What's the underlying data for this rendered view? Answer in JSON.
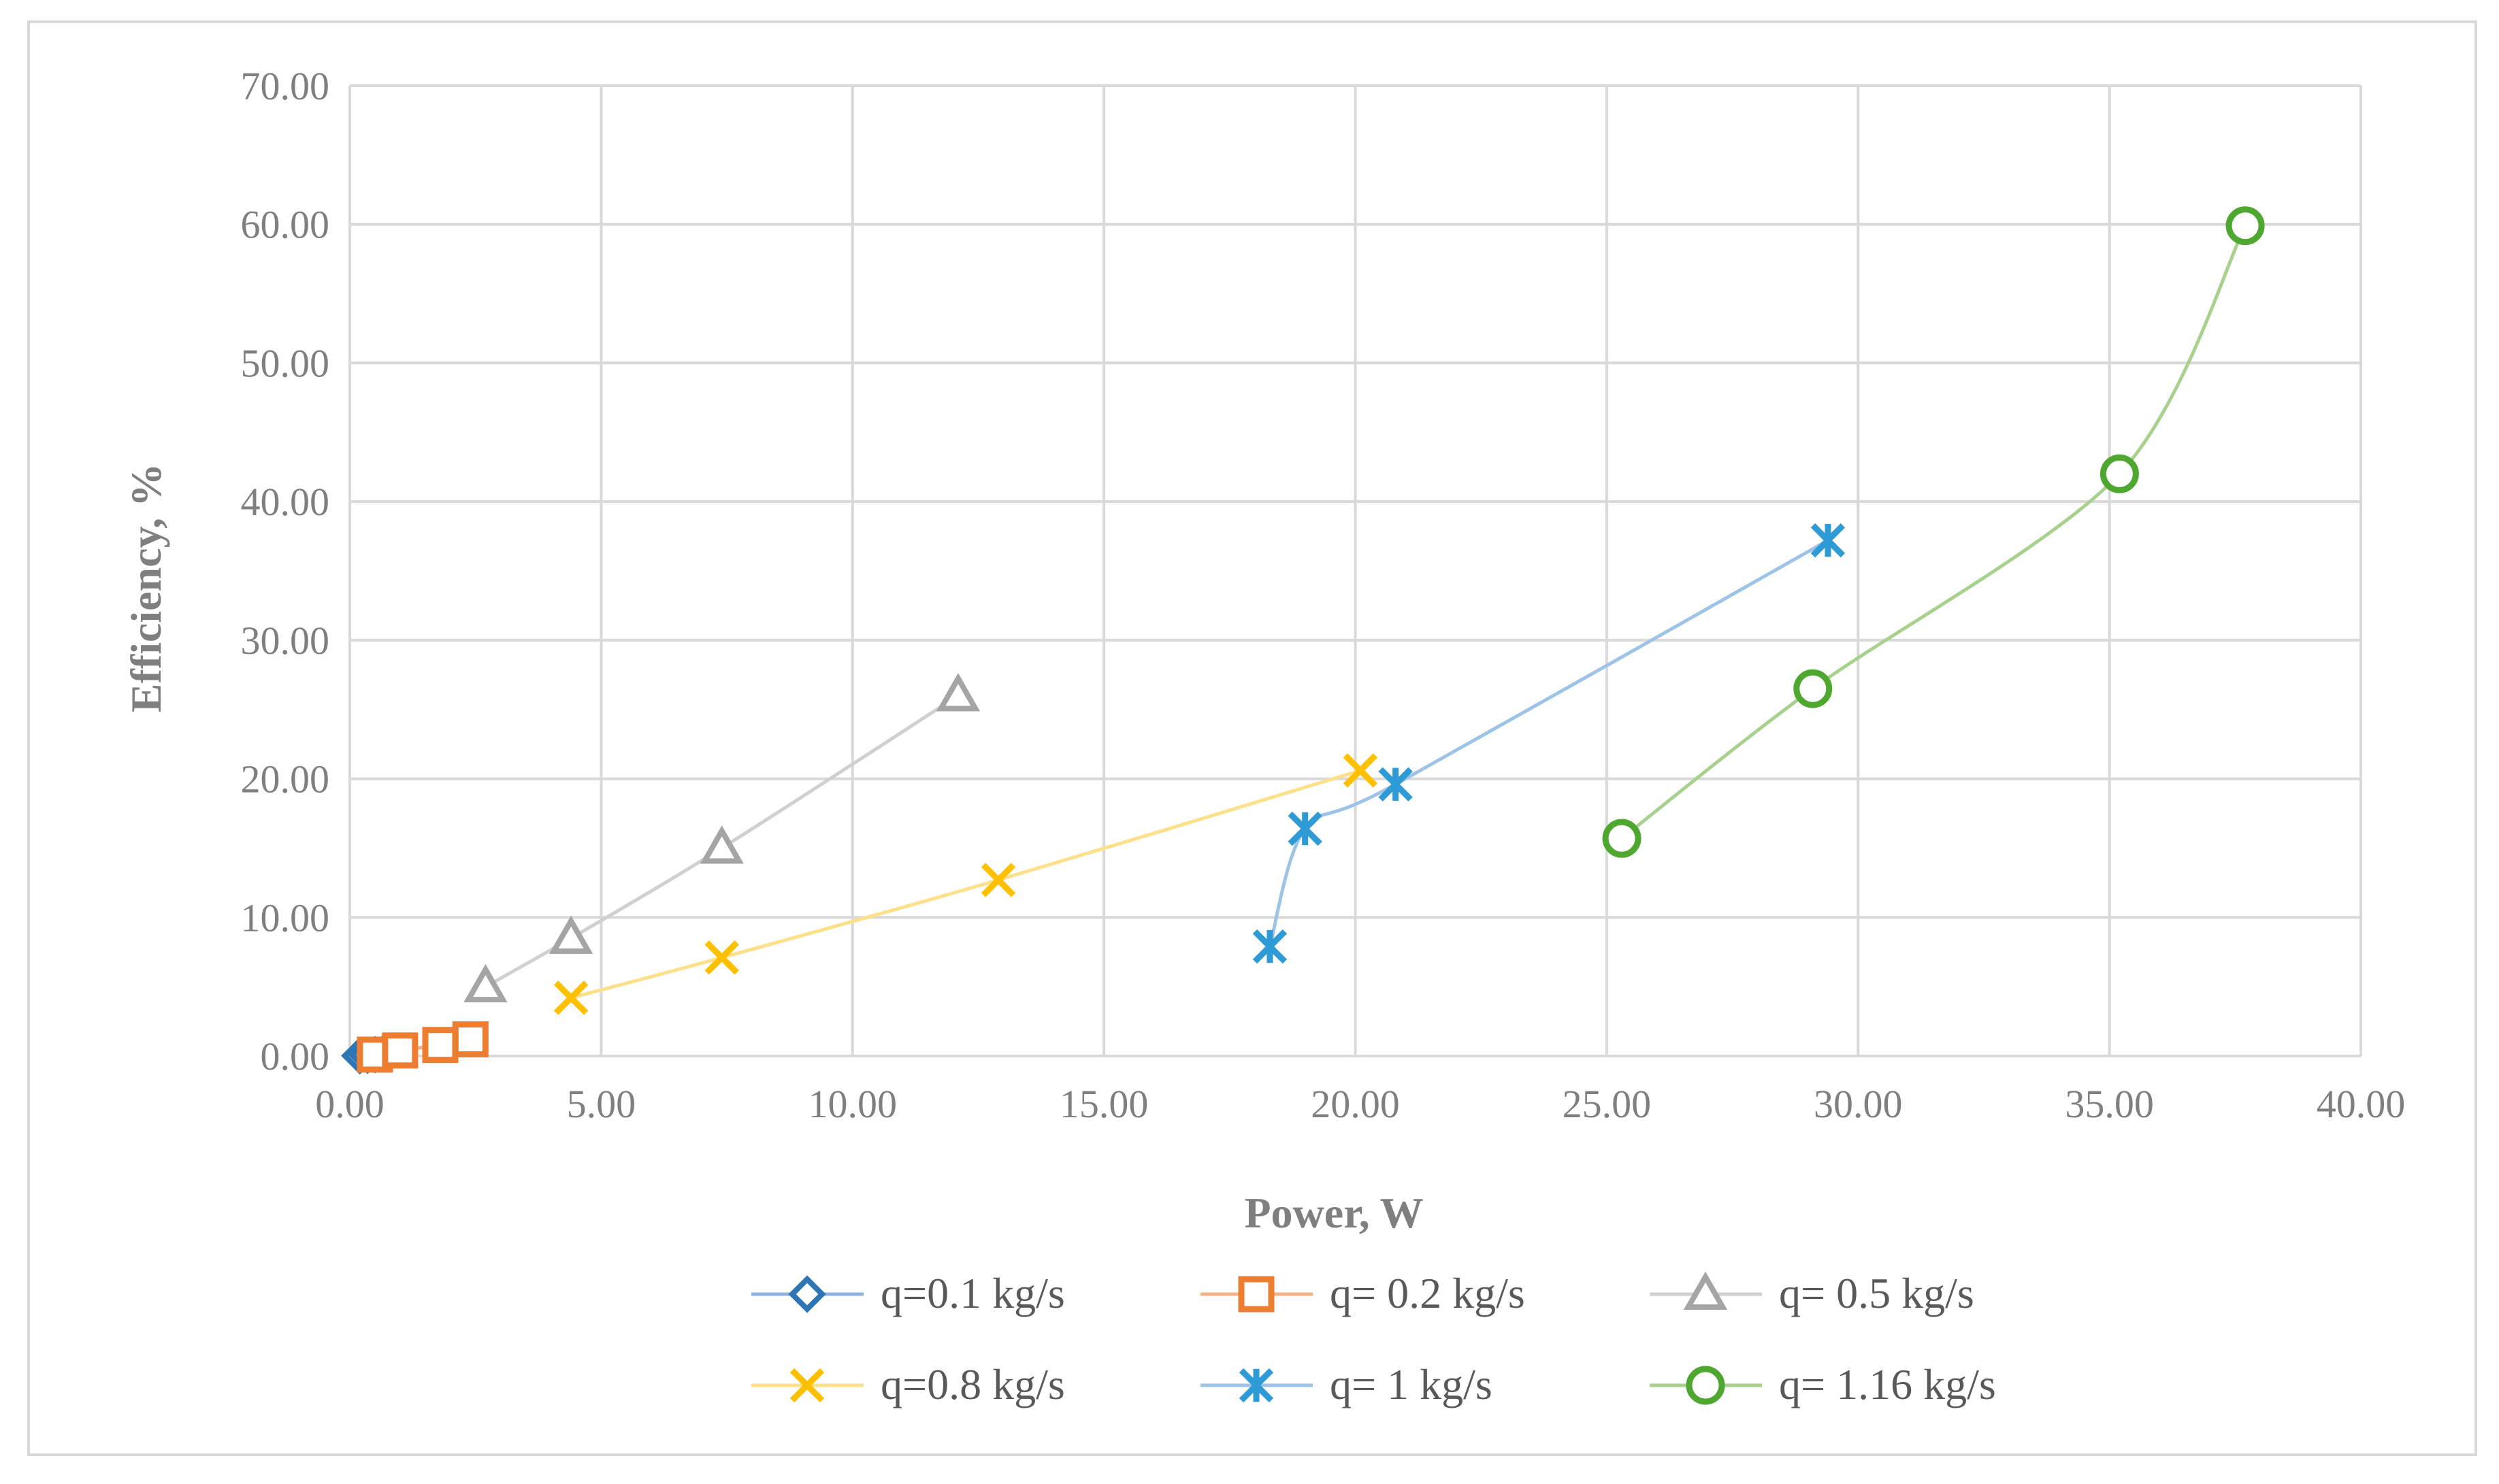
{
  "chart_data": {
    "type": "scatter",
    "title": "",
    "xlabel": "Power, W",
    "ylabel": "Efficiency, %",
    "xlim": [
      0,
      40
    ],
    "ylim": [
      0,
      70
    ],
    "xticks": [
      0,
      5,
      10,
      15,
      20,
      25,
      30,
      35,
      40
    ],
    "yticks": [
      0,
      10,
      20,
      30,
      40,
      50,
      60,
      70
    ],
    "xtick_labels": [
      "0.00",
      "5.00",
      "10.00",
      "15.00",
      "20.00",
      "25.00",
      "30.00",
      "35.00",
      "40.00"
    ],
    "ytick_labels": [
      "0.00",
      "10.00",
      "20.00",
      "30.00",
      "40.00",
      "50.00",
      "60.00",
      "70.00"
    ],
    "grid": true,
    "legend_position": "bottom",
    "series": [
      {
        "name": "q=0.1 kg/s",
        "marker": "diamond",
        "color": "#2e75b6",
        "line_color": "#8db3e2",
        "x": [
          0.2,
          0.35,
          0.5,
          0.65
        ],
        "y": [
          0.02,
          0.05,
          0.1,
          0.15
        ]
      },
      {
        "name": "q= 0.2 kg/s",
        "marker": "square",
        "color": "#ed7d31",
        "line_color": "#f4b183",
        "x": [
          0.5,
          1.0,
          1.8,
          2.4
        ],
        "y": [
          0.1,
          0.4,
          0.8,
          1.2
        ]
      },
      {
        "name": "q= 0.5 kg/s",
        "marker": "triangle",
        "color": "#a5a5a5",
        "line_color": "#d0d0d0",
        "x": [
          2.7,
          4.4,
          7.4,
          12.1
        ],
        "y": [
          5.0,
          8.5,
          15.0,
          26.0
        ]
      },
      {
        "name": "q=0.8 kg/s",
        "marker": "x",
        "color": "#ffc000",
        "line_color": "#ffe08a",
        "x": [
          4.4,
          7.4,
          12.9,
          20.1
        ],
        "y": [
          4.2,
          7.1,
          12.7,
          20.6
        ]
      },
      {
        "name": "q= 1 kg/s",
        "marker": "star",
        "color": "#2e9bd6",
        "line_color": "#9dc3e6",
        "x": [
          18.3,
          19.0,
          20.8,
          29.4
        ],
        "y": [
          7.9,
          16.4,
          19.6,
          37.2
        ]
      },
      {
        "name": "q= 1.16 kg/s",
        "marker": "circle",
        "color": "#4ea72e",
        "line_color": "#a9d18e",
        "x": [
          25.3,
          29.1,
          35.2,
          37.7
        ],
        "y": [
          15.7,
          26.5,
          42.0,
          59.9
        ]
      }
    ]
  }
}
